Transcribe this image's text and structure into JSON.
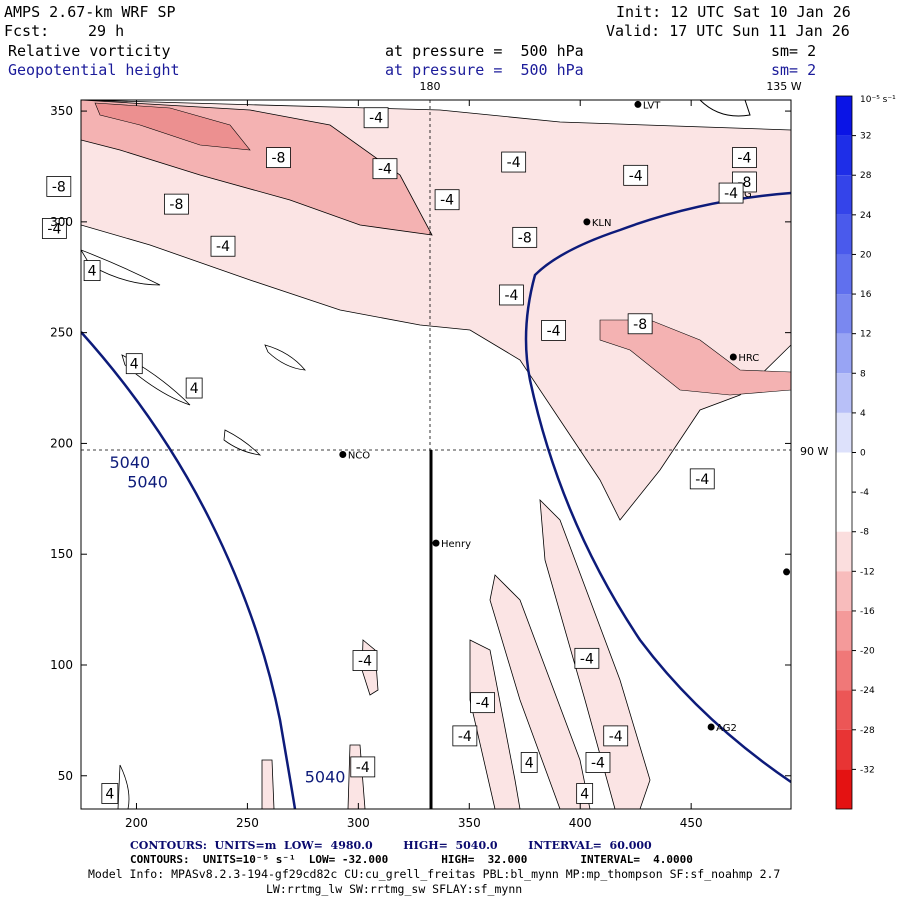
{
  "header": {
    "model": "AMPS 2.67-km WRF SP",
    "init": "Init: 12 UTC Sat 10 Jan 26",
    "fcst_label": "Fcst:",
    "fcst_value": "29 h",
    "valid": "Valid: 17 UTC Sun 11 Jan 26",
    "field1": "Relative vorticity",
    "field1_level": "at pressure =  500 hPa",
    "field1_sm": "sm= 2",
    "field2": "Geopotential height",
    "field2_level": "at pressure =  500 hPa",
    "field2_sm": "sm= 2"
  },
  "colors": {
    "height_contour": "#0d1b7a",
    "vort_neg": "#f2b8b8",
    "vort_neg_strong": "#e88080"
  },
  "chart_data": {
    "type": "contour-map",
    "xlim": [
      175,
      495
    ],
    "ylim": [
      35,
      355
    ],
    "x_ticks": [
      200,
      250,
      300,
      350,
      400,
      450
    ],
    "y_ticks": [
      50,
      100,
      150,
      200,
      250,
      300,
      350
    ],
    "grid_labels": {
      "top": "180",
      "top_right": "135 W",
      "right": "90 W"
    },
    "stations": [
      {
        "name": "LVT",
        "x": 426,
        "y": 353
      },
      {
        "name": "BDG",
        "x": 465,
        "y": 313
      },
      {
        "name": "KLN",
        "x": 403,
        "y": 300
      },
      {
        "name": "HRC",
        "x": 469,
        "y": 239
      },
      {
        "name": "NCO",
        "x": 293,
        "y": 195
      },
      {
        "name": "Henry",
        "x": 335,
        "y": 155
      },
      {
        "name": "AG2",
        "x": 459,
        "y": 72
      },
      {
        "name": "",
        "x": 493,
        "y": 142
      }
    ],
    "height_contour_labels": [
      {
        "text": "5040",
        "x": 197,
        "y": 189
      },
      {
        "text": "5040",
        "x": 205,
        "y": 180
      },
      {
        "text": "5040",
        "x": 285,
        "y": 47
      }
    ],
    "vorticity_labels": [
      {
        "text": "-4",
        "x": 308,
        "y": 347
      },
      {
        "text": "-8",
        "x": 264,
        "y": 329
      },
      {
        "text": "-4",
        "x": 312,
        "y": 324
      },
      {
        "text": "-4",
        "x": 370,
        "y": 327
      },
      {
        "text": "-8",
        "x": 165,
        "y": 316
      },
      {
        "text": "-8",
        "x": 218,
        "y": 308
      },
      {
        "text": "-4",
        "x": 163,
        "y": 297
      },
      {
        "text": "-4",
        "x": 239,
        "y": 289
      },
      {
        "text": "-4",
        "x": 340,
        "y": 310
      },
      {
        "text": "-8",
        "x": 375,
        "y": 293
      },
      {
        "text": "-4",
        "x": 369,
        "y": 267
      },
      {
        "text": "-4",
        "x": 425,
        "y": 321
      },
      {
        "text": "-4",
        "x": 474,
        "y": 329
      },
      {
        "text": "-8",
        "x": 474,
        "y": 318
      },
      {
        "text": "-4",
        "x": 468,
        "y": 313
      },
      {
        "text": "-8",
        "x": 427,
        "y": 254
      },
      {
        "text": "-4",
        "x": 388,
        "y": 251
      },
      {
        "text": "-4",
        "x": 455,
        "y": 184
      },
      {
        "text": "-4",
        "x": 303,
        "y": 102
      },
      {
        "text": "-4",
        "x": 403,
        "y": 103
      },
      {
        "text": "-4",
        "x": 356,
        "y": 83
      },
      {
        "text": "-4",
        "x": 416,
        "y": 68
      },
      {
        "text": "-4",
        "x": 348,
        "y": 68
      },
      {
        "text": "-4",
        "x": 408,
        "y": 56
      },
      {
        "text": "-4",
        "x": 302,
        "y": 54
      },
      {
        "text": "4",
        "x": 180,
        "y": 278
      },
      {
        "text": "4",
        "x": 199,
        "y": 236
      },
      {
        "text": "4",
        "x": 226,
        "y": 225
      },
      {
        "text": "4",
        "x": 377,
        "y": 56
      },
      {
        "text": "4",
        "x": 402,
        "y": 42
      },
      {
        "text": "4",
        "x": 188,
        "y": 42
      }
    ],
    "colorbar": {
      "unit_label": "10⁻⁵ s⁻¹",
      "ticks": [
        "32",
        "28",
        "24",
        "20",
        "16",
        "12",
        "8",
        "4",
        "0",
        "-4",
        "-8",
        "-12",
        "-16",
        "-20",
        "-24",
        "-28",
        "-32"
      ]
    }
  },
  "footer": {
    "contours1": "CONTOURS:  UNITS=m  LOW=  4980.0        HIGH=  5040.0        INTERVAL=  60.000",
    "contours2": "CONTOURS:  UNITS=10⁻⁵ s⁻¹  LOW= -32.000        HIGH=  32.000        INTERVAL=  4.0000",
    "model_info": "Model Info: MPASv8.2.3-194-gf29cd82c CU:cu_grell_freitas PBL:bl_mynn MP:mp_thompson SF:sf_noahmp 2.7",
    "model_info2": "LW:rrtmg_lw SW:rrtmg_sw SFLAY:sf_mynn"
  }
}
